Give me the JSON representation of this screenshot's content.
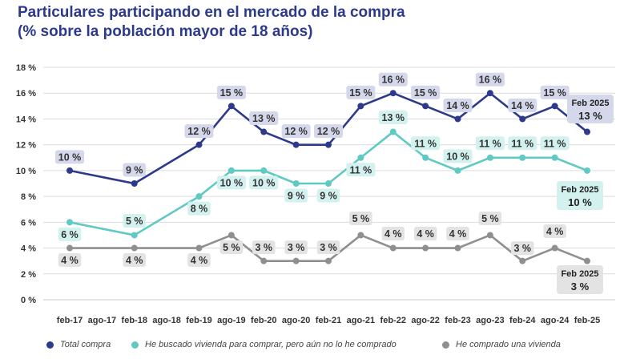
{
  "title_line1": "Particulares participando en el mercado de la compra",
  "title_line2": "(% sobre la población mayor de 18 años)",
  "colors": {
    "total": "#2d3a8c",
    "buscado": "#5fc9c3",
    "comprado": "#8f8f8f",
    "label_total_bg": "#d5d8eb",
    "label_buscado_bg": "#d2f1ef",
    "label_comprado_bg": "#e3e3e3",
    "grid": "#dcdcdc",
    "axis_text": "#333333"
  },
  "chart_data": {
    "type": "line",
    "title": "Particulares participando en el mercado de la compra (% sobre la población mayor de 18 años)",
    "xlabel": "",
    "ylabel": "",
    "ylim": [
      0,
      18
    ],
    "yticks": [
      "0 %",
      "2 %",
      "4 %",
      "6 %",
      "8 %",
      "10 %",
      "12 %",
      "14 %",
      "16 %",
      "18 %"
    ],
    "grid": true,
    "legend_position": "bottom",
    "categories": [
      "feb-17",
      "ago-17",
      "feb-18",
      "ago-18",
      "feb-19",
      "ago-19",
      "feb-20",
      "ago-20",
      "feb-21",
      "ago-21",
      "feb-22",
      "ago-22",
      "feb-23",
      "ago-23",
      "feb-24",
      "ago-24",
      "feb-25"
    ],
    "series": [
      {
        "name": "Total compra",
        "key": "total",
        "values": [
          10,
          null,
          9,
          null,
          12,
          15,
          13,
          12,
          12,
          15,
          16,
          15,
          14,
          16,
          14,
          15,
          13
        ]
      },
      {
        "name": "He buscado vivienda para comprar, pero aún no lo he comprado",
        "key": "buscado",
        "values": [
          6,
          null,
          5,
          null,
          8,
          10,
          10,
          9,
          9,
          11,
          13,
          11,
          10,
          11,
          11,
          11,
          10
        ]
      },
      {
        "name": "He comprado una vivienda",
        "key": "comprado",
        "values": [
          4,
          null,
          4,
          null,
          4,
          5,
          3,
          3,
          3,
          5,
          4,
          4,
          4,
          5,
          3,
          4,
          3
        ]
      }
    ],
    "data_labels": {
      "total": [
        "10 %",
        null,
        "9 %",
        null,
        "12 %",
        "15 %",
        "13 %",
        "12 %",
        "12 %",
        "15 %",
        "16 %",
        "15 %",
        "14 %",
        "16 %",
        "14 %",
        "15 %",
        "13 %"
      ],
      "buscado": [
        "6 %",
        null,
        "5 %",
        null,
        "8 %",
        "10 %",
        "10 %",
        "9 %",
        "9 %",
        "11 %",
        "13 %",
        "11 %",
        "10 %",
        "11 %",
        "11 %",
        "11 %",
        "10 %"
      ],
      "comprado": [
        "4 %",
        null,
        "4 %",
        null,
        "4 %",
        "5 %",
        "3 %",
        "3 %",
        "3 %",
        "5 %",
        "4 %",
        "4 %",
        "4 %",
        "5 %",
        "3 %",
        "4 %",
        "3 %"
      ]
    },
    "end_annotation": "Feb 2025"
  }
}
